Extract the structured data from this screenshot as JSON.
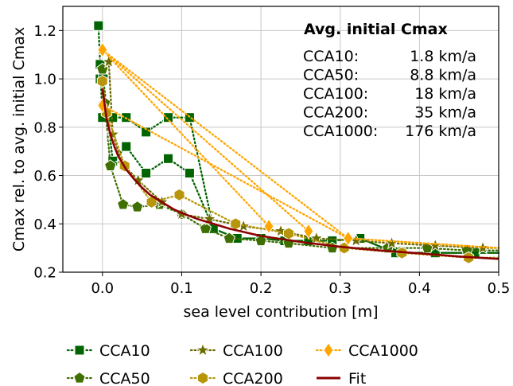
{
  "chart_data": {
    "type": "line",
    "xlabel": "sea level contribution [m]",
    "ylabel": "Cmax rel. to avg. initial Cmax",
    "xlim": [
      -0.05,
      0.5
    ],
    "ylim": [
      0.2,
      1.3
    ],
    "xticks": [
      0.0,
      0.1,
      0.2,
      0.3,
      0.4,
      0.5
    ],
    "xtick_labels": [
      "0.0",
      "0.1",
      "0.2",
      "0.3",
      "0.4",
      "0.5"
    ],
    "yticks": [
      0.2,
      0.4,
      0.6,
      0.8,
      1.0,
      1.2
    ],
    "ytick_labels": [
      "0.2",
      "0.4",
      "0.6",
      "0.8",
      "1.0",
      "1.2"
    ],
    "grid": true,
    "legend_position": "bottom",
    "series": [
      {
        "name": "CCA10",
        "color": "#006400",
        "marker": "square",
        "style": "dotted",
        "runs": [
          [
            [
              -0.005,
              1.22
            ],
            [
              0.0,
              0.84
            ],
            [
              0.013,
              0.84
            ],
            [
              0.03,
              0.84
            ],
            [
              0.055,
              0.78
            ],
            [
              0.083,
              0.84
            ],
            [
              0.11,
              0.84
            ],
            [
              0.14,
              0.38
            ],
            [
              0.17,
              0.34
            ],
            [
              0.2,
              0.34
            ],
            [
              0.23,
              0.33
            ],
            [
              0.26,
              0.33
            ],
            [
              0.29,
              0.33
            ],
            [
              0.325,
              0.34
            ],
            [
              0.37,
              0.28
            ],
            [
              0.42,
              0.28
            ],
            [
              0.47,
              0.28
            ],
            [
              0.5,
              0.28
            ]
          ],
          [
            [
              -0.003,
              1.06
            ],
            [
              -0.003,
              1.0
            ],
            [
              0.001,
              1.0
            ],
            [
              0.013,
              0.66
            ],
            [
              0.03,
              0.72
            ],
            [
              0.055,
              0.61
            ],
            [
              0.083,
              0.67
            ],
            [
              0.11,
              0.61
            ],
            [
              0.14,
              0.38
            ],
            [
              0.17,
              0.34
            ],
            [
              0.2,
              0.34
            ],
            [
              0.23,
              0.33
            ],
            [
              0.26,
              0.33
            ],
            [
              0.29,
              0.33
            ],
            [
              0.325,
              0.34
            ],
            [
              0.37,
              0.28
            ],
            [
              0.42,
              0.28
            ],
            [
              0.47,
              0.28
            ],
            [
              0.5,
              0.28
            ]
          ]
        ]
      },
      {
        "name": "CCA50",
        "color": "#3f6f00",
        "marker": "pentagon",
        "style": "dotted",
        "runs": [
          [
            [
              0.0,
              1.04
            ],
            [
              0.003,
              0.9
            ],
            [
              0.01,
              0.64
            ],
            [
              0.026,
              0.48
            ],
            [
              0.044,
              0.47
            ],
            [
              0.072,
              0.48
            ],
            [
              0.1,
              0.44
            ],
            [
              0.13,
              0.38
            ],
            [
              0.16,
              0.34
            ],
            [
              0.2,
              0.33
            ],
            [
              0.235,
              0.32
            ],
            [
              0.29,
              0.3
            ],
            [
              0.36,
              0.3
            ],
            [
              0.41,
              0.3
            ],
            [
              0.46,
              0.29
            ],
            [
              0.5,
              0.29
            ]
          ]
        ]
      },
      {
        "name": "CCA100",
        "color": "#6b6b00",
        "marker": "star",
        "style": "dotted",
        "runs": [
          [
            [
              0.008,
              1.07
            ],
            [
              0.013,
              0.77
            ],
            [
              0.025,
              0.65
            ],
            [
              0.045,
              0.58
            ],
            [
              0.075,
              0.49
            ],
            [
              0.1,
              0.44
            ],
            [
              0.135,
              0.42
            ],
            [
              0.178,
              0.39
            ],
            [
              0.225,
              0.37
            ],
            [
              0.27,
              0.34
            ],
            [
              0.32,
              0.33
            ],
            [
              0.365,
              0.32
            ],
            [
              0.42,
              0.31
            ],
            [
              0.48,
              0.3
            ],
            [
              0.5,
              0.3
            ]
          ]
        ]
      },
      {
        "name": "CCA200",
        "color": "#b8960c",
        "marker": "hexagon",
        "style": "dotted",
        "runs": [
          [
            [
              0.0,
              0.99
            ],
            [
              0.005,
              0.86
            ],
            [
              0.028,
              0.64
            ],
            [
              0.062,
              0.49
            ],
            [
              0.097,
              0.52
            ],
            [
              0.168,
              0.4
            ],
            [
              0.235,
              0.36
            ],
            [
              0.305,
              0.3
            ],
            [
              0.378,
              0.28
            ],
            [
              0.462,
              0.26
            ],
            [
              0.5,
              0.26
            ]
          ]
        ]
      },
      {
        "name": "CCA1000",
        "color": "#ffa500",
        "marker": "diamond",
        "style": "dotted",
        "runs": [
          [
            [
              0.0,
              1.12
            ],
            [
              0.31,
              0.34
            ],
            [
              0.5,
              0.3
            ]
          ],
          [
            [
              0.0,
              0.89
            ],
            [
              0.31,
              0.34
            ],
            [
              0.5,
              0.3
            ]
          ],
          [
            [
              0.0,
              1.12
            ],
            [
              0.26,
              0.37
            ]
          ],
          [
            [
              0.0,
              1.12
            ],
            [
              0.21,
              0.39
            ]
          ]
        ]
      },
      {
        "name": "Fit",
        "color": "#8b0000",
        "marker": "none",
        "style": "solid",
        "runs": [
          [
            [
              0.0,
              0.96
            ],
            [
              0.005,
              0.84
            ],
            [
              0.01,
              0.77
            ],
            [
              0.015,
              0.72
            ],
            [
              0.02,
              0.68
            ],
            [
              0.03,
              0.625
            ],
            [
              0.04,
              0.585
            ],
            [
              0.05,
              0.55
            ],
            [
              0.06,
              0.52
            ],
            [
              0.075,
              0.49
            ],
            [
              0.09,
              0.46
            ],
            [
              0.1,
              0.445
            ],
            [
              0.12,
              0.42
            ],
            [
              0.14,
              0.4
            ],
            [
              0.16,
              0.38
            ],
            [
              0.18,
              0.365
            ],
            [
              0.2,
              0.35
            ],
            [
              0.25,
              0.325
            ],
            [
              0.3,
              0.305
            ],
            [
              0.35,
              0.29
            ],
            [
              0.4,
              0.278
            ],
            [
              0.45,
              0.265
            ],
            [
              0.5,
              0.255
            ]
          ]
        ]
      }
    ],
    "legend_items": [
      {
        "label": "CCA10",
        "series": 0
      },
      {
        "label": "CCA100",
        "series": 2
      },
      {
        "label": "CCA1000",
        "series": 4
      },
      {
        "label": "CCA50",
        "series": 1
      },
      {
        "label": "CCA200",
        "series": 3
      },
      {
        "label": "Fit",
        "series": 5
      }
    ],
    "annotation": {
      "title": "Avg. initial Cmax",
      "rows": [
        {
          "label": "CCA10:",
          "value": "1.8 km/a"
        },
        {
          "label": "CCA50:",
          "value": "8.8 km/a"
        },
        {
          "label": "CCA100:",
          "value": "18 km/a"
        },
        {
          "label": "CCA200:",
          "value": "35 km/a"
        },
        {
          "label": "CCA1000:",
          "value": "176 km/a"
        }
      ]
    }
  }
}
